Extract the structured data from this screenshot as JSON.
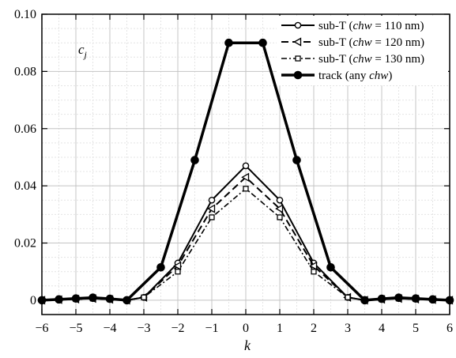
{
  "chart_data": {
    "type": "line",
    "title": "",
    "xlabel": "k",
    "ylabel": "",
    "annotation": {
      "main": "c",
      "sub": "j"
    },
    "xlim": [
      -6,
      6
    ],
    "ylim": [
      -0.005,
      0.1
    ],
    "xticks": [
      -6,
      -5,
      -4,
      -3,
      -2,
      -1,
      0,
      1,
      2,
      3,
      4,
      5,
      6
    ],
    "yticks": [
      0,
      0.02,
      0.04,
      0.06,
      0.08,
      0.1
    ],
    "xtick_labels": [
      "−6",
      "−5",
      "−4",
      "−3",
      "−2",
      "−1",
      "0",
      "1",
      "2",
      "3",
      "4",
      "5",
      "6"
    ],
    "ytick_labels": [
      "0",
      "0.02",
      "0.04",
      "0.06",
      "0.08",
      "0.10"
    ],
    "grid": true,
    "legend_position": "top-right",
    "series": [
      {
        "name": "sub-T (chw = 110 nm)",
        "legend": {
          "pre": "sub-T (",
          "it": "chw",
          "post": " = 110 nm)"
        },
        "marker": "circle-open",
        "line": "solid",
        "x": [
          -6,
          -5.5,
          -5,
          -4.5,
          -4,
          -3.5,
          -3,
          -2,
          -1,
          0,
          1,
          2,
          3,
          3.5,
          4,
          4.5,
          5,
          5.5,
          6
        ],
        "y": [
          0,
          0.0002,
          0.0004,
          0.0006,
          0.0003,
          0,
          0.001,
          0.013,
          0.035,
          0.047,
          0.035,
          0.013,
          0.001,
          0,
          0.0003,
          0.0006,
          0.0004,
          0.0002,
          0
        ]
      },
      {
        "name": "sub-T (chw = 120 nm)",
        "legend": {
          "pre": "sub-T (",
          "it": "chw",
          "post": " = 120 nm)"
        },
        "marker": "triangle-open",
        "line": "dashed",
        "x": [
          -6,
          -5.5,
          -5,
          -4.5,
          -4,
          -3.5,
          -3,
          -2,
          -1,
          0,
          1,
          2,
          3,
          3.5,
          4,
          4.5,
          5,
          5.5,
          6
        ],
        "y": [
          0,
          0.0002,
          0.0004,
          0.0006,
          0.0003,
          0,
          0.001,
          0.012,
          0.032,
          0.043,
          0.032,
          0.012,
          0.001,
          0,
          0.0003,
          0.0006,
          0.0004,
          0.0002,
          0
        ]
      },
      {
        "name": "sub-T (chw = 130 nm)",
        "legend": {
          "pre": "sub-T (",
          "it": "chw",
          "post": " = 130 nm)"
        },
        "marker": "square-open",
        "line": "dashdot",
        "x": [
          -6,
          -5.5,
          -5,
          -4.5,
          -4,
          -3.5,
          -3,
          -2,
          -1,
          0,
          1,
          2,
          3,
          3.5,
          4,
          4.5,
          5,
          5.5,
          6
        ],
        "y": [
          0,
          0.0002,
          0.0004,
          0.0006,
          0.0003,
          0,
          0.001,
          0.01,
          0.029,
          0.039,
          0.029,
          0.01,
          0.001,
          0,
          0.0003,
          0.0006,
          0.0004,
          0.0002,
          0
        ]
      },
      {
        "name": "track (any chw)",
        "legend": {
          "pre": "track (any ",
          "it": "chw",
          "post": ")"
        },
        "marker": "circle-filled",
        "line": "thick",
        "x": [
          -6,
          -5.5,
          -5,
          -4.5,
          -4,
          -3.5,
          -2.5,
          -1.5,
          -0.5,
          0.5,
          1.5,
          2.5,
          3.5,
          4,
          4.5,
          5,
          5.5,
          6
        ],
        "y": [
          0,
          0.0003,
          0.0006,
          0.0009,
          0.0005,
          0,
          0.0115,
          0.049,
          0.09,
          0.09,
          0.049,
          0.0115,
          0,
          0.0005,
          0.0009,
          0.0006,
          0.0003,
          0
        ]
      }
    ]
  }
}
